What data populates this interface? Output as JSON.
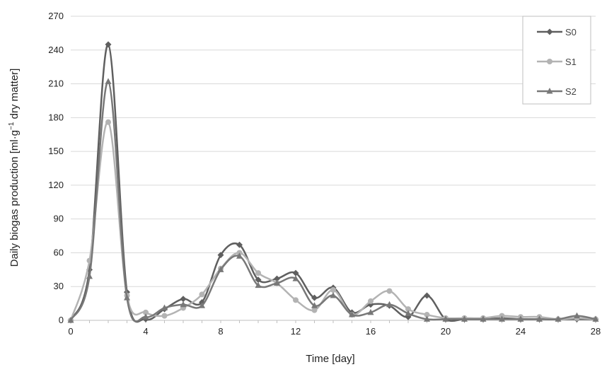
{
  "chart_data": {
    "type": "line",
    "smooth": true,
    "xlabel": "Time [day]",
    "ylabel_parts": [
      "Daily biogas production [ml·g",
      "−1",
      " dry matter]"
    ],
    "xlim": [
      0,
      28
    ],
    "ylim": [
      0,
      270
    ],
    "xticks": [
      0,
      4,
      8,
      12,
      16,
      20,
      24,
      28
    ],
    "yticks": [
      0,
      30,
      60,
      90,
      120,
      150,
      180,
      210,
      240,
      270
    ],
    "grid": "horizontal",
    "legend_position": "top-right",
    "series": [
      {
        "name": "S0",
        "color": "#5f5f5f",
        "marker": "diamond",
        "x": [
          0,
          1,
          2,
          3,
          4,
          5,
          6,
          7,
          8,
          9,
          10,
          11,
          12,
          13,
          14,
          15,
          16,
          17,
          18,
          19,
          20,
          21,
          22,
          23,
          24,
          25,
          26,
          27,
          28
        ],
        "values": [
          0,
          45,
          245,
          25,
          1,
          10,
          19,
          16,
          58,
          67,
          36,
          37,
          42,
          20,
          29,
          7,
          14,
          13,
          3,
          22,
          1,
          1,
          1,
          2,
          1,
          1,
          1,
          1,
          1
        ]
      },
      {
        "name": "S1",
        "color": "#b3b3b3",
        "marker": "circle",
        "x": [
          0,
          1,
          2,
          3,
          4,
          5,
          6,
          7,
          8,
          9,
          10,
          11,
          12,
          13,
          14,
          15,
          16,
          17,
          18,
          19,
          20,
          21,
          22,
          23,
          24,
          25,
          26,
          27,
          28
        ],
        "values": [
          0,
          53,
          176,
          22,
          7,
          4,
          11,
          23,
          46,
          60,
          42,
          33,
          18,
          9,
          27,
          5,
          17,
          26,
          10,
          5,
          2,
          2,
          2,
          4,
          3,
          3,
          1,
          2,
          1
        ]
      },
      {
        "name": "S2",
        "color": "#787878",
        "marker": "triangle",
        "x": [
          0,
          1,
          2,
          3,
          4,
          5,
          6,
          7,
          8,
          9,
          10,
          11,
          12,
          13,
          14,
          15,
          16,
          17,
          18,
          19,
          20,
          21,
          22,
          23,
          24,
          25,
          26,
          27,
          28
        ],
        "values": [
          0,
          39,
          212,
          20,
          3,
          11,
          14,
          13,
          45,
          57,
          31,
          33,
          37,
          13,
          22,
          5,
          7,
          14,
          6,
          1,
          1,
          1,
          1,
          1,
          1,
          1,
          1,
          4,
          1
        ]
      }
    ]
  }
}
